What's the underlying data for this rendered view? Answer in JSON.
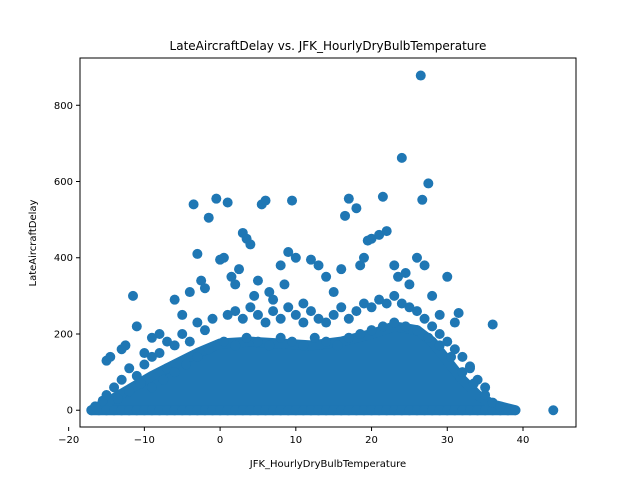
{
  "chart_data": {
    "type": "scatter",
    "title": "LateAircraftDelay vs. JFK_HourlyDryBulbTemperature",
    "xlabel": "JFK_HourlyDryBulbTemperature",
    "ylabel": "LateAircraftDelay",
    "xlim": [
      -18.5,
      47.0
    ],
    "ylim": [
      -44,
      924
    ],
    "xticks": [
      -20,
      -10,
      0,
      10,
      20,
      30,
      40
    ],
    "yticks": [
      0,
      200,
      400,
      600,
      800
    ],
    "grid": false,
    "color": "#1f77b4",
    "points": [
      [
        -17,
        0
      ],
      [
        -16,
        0
      ],
      [
        -15,
        0
      ],
      [
        -14,
        0
      ],
      [
        -13,
        0
      ],
      [
        -12,
        0
      ],
      [
        -11,
        0
      ],
      [
        -10,
        0
      ],
      [
        -9,
        0
      ],
      [
        -8,
        0
      ],
      [
        -7,
        0
      ],
      [
        -6,
        0
      ],
      [
        -5,
        0
      ],
      [
        -4,
        0
      ],
      [
        -3,
        0
      ],
      [
        -2,
        0
      ],
      [
        -1,
        0
      ],
      [
        0,
        0
      ],
      [
        1,
        0
      ],
      [
        2,
        0
      ],
      [
        3,
        0
      ],
      [
        4,
        0
      ],
      [
        5,
        0
      ],
      [
        6,
        0
      ],
      [
        7,
        0
      ],
      [
        8,
        0
      ],
      [
        9,
        0
      ],
      [
        10,
        0
      ],
      [
        11,
        0
      ],
      [
        12,
        0
      ],
      [
        13,
        0
      ],
      [
        14,
        0
      ],
      [
        15,
        0
      ],
      [
        16,
        0
      ],
      [
        17,
        0
      ],
      [
        18,
        0
      ],
      [
        19,
        0
      ],
      [
        20,
        0
      ],
      [
        21,
        0
      ],
      [
        22,
        0
      ],
      [
        23,
        0
      ],
      [
        24,
        0
      ],
      [
        25,
        0
      ],
      [
        26,
        0
      ],
      [
        27,
        0
      ],
      [
        28,
        0
      ],
      [
        29,
        0
      ],
      [
        30,
        0
      ],
      [
        31,
        0
      ],
      [
        32,
        0
      ],
      [
        33,
        0
      ],
      [
        34,
        0
      ],
      [
        35,
        0
      ],
      [
        36,
        0
      ],
      [
        37,
        0
      ],
      [
        38,
        0
      ],
      [
        39,
        0
      ],
      [
        44,
        0
      ],
      [
        -16.5,
        10
      ],
      [
        -15.5,
        25
      ],
      [
        -15,
        130
      ],
      [
        -14.5,
        140
      ],
      [
        -13,
        160
      ],
      [
        -12.5,
        170
      ],
      [
        -11.5,
        300
      ],
      [
        -11,
        220
      ],
      [
        -10,
        150
      ],
      [
        -9,
        190
      ],
      [
        -8,
        200
      ],
      [
        -7,
        180
      ],
      [
        -6,
        290
      ],
      [
        -5,
        250
      ],
      [
        -4,
        310
      ],
      [
        -3.5,
        540
      ],
      [
        -3,
        410
      ],
      [
        -2.5,
        340
      ],
      [
        -2,
        320
      ],
      [
        -1.5,
        505
      ],
      [
        -0.5,
        555
      ],
      [
        0,
        395
      ],
      [
        0.5,
        400
      ],
      [
        1,
        545
      ],
      [
        1.5,
        350
      ],
      [
        2,
        330
      ],
      [
        2.5,
        370
      ],
      [
        3,
        465
      ],
      [
        3.5,
        450
      ],
      [
        4,
        435
      ],
      [
        4.5,
        300
      ],
      [
        5,
        340
      ],
      [
        5.5,
        540
      ],
      [
        6,
        550
      ],
      [
        6.5,
        310
      ],
      [
        7,
        290
      ],
      [
        8,
        380
      ],
      [
        8.5,
        330
      ],
      [
        9,
        415
      ],
      [
        9.5,
        550
      ],
      [
        10,
        400
      ],
      [
        11,
        280
      ],
      [
        12,
        395
      ],
      [
        13,
        380
      ],
      [
        14,
        350
      ],
      [
        15,
        310
      ],
      [
        16,
        370
      ],
      [
        16.5,
        510
      ],
      [
        17,
        555
      ],
      [
        18,
        530
      ],
      [
        18.5,
        380
      ],
      [
        19,
        400
      ],
      [
        19.5,
        445
      ],
      [
        20,
        450
      ],
      [
        21,
        460
      ],
      [
        21.5,
        560
      ],
      [
        22,
        470
      ],
      [
        23,
        380
      ],
      [
        23.5,
        350
      ],
      [
        24,
        662
      ],
      [
        24.5,
        360
      ],
      [
        25,
        330
      ],
      [
        26,
        400
      ],
      [
        26.5,
        878
      ],
      [
        26.7,
        552
      ],
      [
        27,
        380
      ],
      [
        27.5,
        595
      ],
      [
        28,
        300
      ],
      [
        29,
        250
      ],
      [
        30,
        350
      ],
      [
        31,
        230
      ],
      [
        31.5,
        255
      ],
      [
        33,
        115
      ],
      [
        36,
        225
      ],
      [
        -14,
        60
      ],
      [
        -13,
        80
      ],
      [
        -12,
        110
      ],
      [
        -11,
        90
      ],
      [
        -10,
        120
      ],
      [
        -9,
        140
      ],
      [
        -8,
        150
      ],
      [
        -7,
        110
      ],
      [
        -6,
        170
      ],
      [
        -5,
        200
      ],
      [
        -4,
        180
      ],
      [
        -3,
        230
      ],
      [
        -2,
        210
      ],
      [
        -1,
        240
      ],
      [
        1,
        250
      ],
      [
        2,
        260
      ],
      [
        3,
        240
      ],
      [
        4,
        270
      ],
      [
        5,
        250
      ],
      [
        6,
        230
      ],
      [
        7,
        260
      ],
      [
        8,
        240
      ],
      [
        9,
        270
      ],
      [
        10,
        250
      ],
      [
        11,
        230
      ],
      [
        12,
        260
      ],
      [
        13,
        240
      ],
      [
        14,
        230
      ],
      [
        15,
        250
      ],
      [
        16,
        270
      ],
      [
        17,
        240
      ],
      [
        18,
        260
      ],
      [
        19,
        280
      ],
      [
        20,
        270
      ],
      [
        21,
        290
      ],
      [
        22,
        280
      ],
      [
        23,
        300
      ],
      [
        24,
        280
      ],
      [
        25,
        270
      ],
      [
        26,
        260
      ],
      [
        27,
        240
      ],
      [
        28,
        220
      ],
      [
        29,
        200
      ],
      [
        30,
        180
      ],
      [
        31,
        160
      ],
      [
        32,
        140
      ],
      [
        33,
        110
      ],
      [
        34,
        80
      ],
      [
        35,
        60
      ],
      [
        -15,
        40
      ],
      [
        -13.5,
        30
      ],
      [
        -12,
        50
      ],
      [
        -10.5,
        70
      ],
      [
        -9,
        60
      ],
      [
        -7.5,
        80
      ],
      [
        -6,
        100
      ],
      [
        -4.5,
        120
      ],
      [
        -3,
        140
      ],
      [
        -1.5,
        160
      ],
      [
        0.5,
        180
      ],
      [
        2,
        170
      ],
      [
        3.5,
        190
      ],
      [
        5,
        180
      ],
      [
        6.5,
        170
      ],
      [
        8,
        190
      ],
      [
        9.5,
        180
      ],
      [
        11,
        170
      ],
      [
        12.5,
        190
      ],
      [
        14,
        180
      ],
      [
        15.5,
        170
      ],
      [
        17,
        190
      ],
      [
        18.5,
        200
      ],
      [
        20,
        210
      ],
      [
        21.5,
        220
      ],
      [
        23,
        230
      ],
      [
        24.5,
        220
      ],
      [
        26,
        210
      ],
      [
        27.5,
        190
      ],
      [
        29,
        170
      ],
      [
        30.5,
        140
      ],
      [
        32,
        100
      ],
      [
        33.5,
        70
      ],
      [
        35,
        40
      ],
      [
        36,
        20
      ],
      [
        37,
        10
      ]
    ]
  }
}
